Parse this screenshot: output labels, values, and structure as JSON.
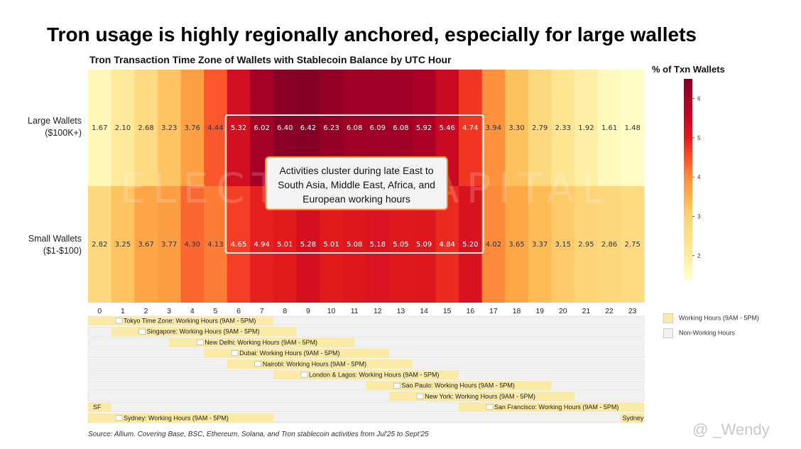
{
  "title": "Tron usage is highly regionally anchored, especially for large wallets",
  "chart_data": {
    "type": "heatmap",
    "title": "Tron Transaction Time Zone of Wallets with Stablecoin Balance by UTC Hour",
    "x": [
      0,
      1,
      2,
      3,
      4,
      5,
      6,
      7,
      8,
      9,
      10,
      11,
      12,
      13,
      14,
      15,
      16,
      17,
      18,
      19,
      20,
      21,
      22,
      23
    ],
    "rows": [
      {
        "label_line1": "Large Wallets",
        "label_line2": "($100K+)",
        "values": [
          1.67,
          2.1,
          2.68,
          3.23,
          3.76,
          4.44,
          5.32,
          6.02,
          6.4,
          6.42,
          6.23,
          6.08,
          6.09,
          6.08,
          5.92,
          5.46,
          4.74,
          3.94,
          3.3,
          2.79,
          2.33,
          1.92,
          1.61,
          1.48
        ]
      },
      {
        "label_line1": "Small Wallets",
        "label_line2": "($1-$100)",
        "values": [
          2.82,
          3.25,
          3.67,
          3.77,
          4.3,
          4.13,
          4.65,
          4.94,
          5.01,
          5.28,
          5.01,
          5.08,
          5.18,
          5.05,
          5.09,
          4.84,
          5.2,
          4.02,
          3.65,
          3.37,
          3.15,
          2.95,
          2.86,
          2.75
        ]
      }
    ],
    "colorbar": {
      "title": "% of Txn Wallets",
      "min": 1.4,
      "max": 6.5,
      "ticks": [
        2,
        3,
        4,
        5,
        6
      ]
    },
    "highlight_hours": [
      6,
      16
    ],
    "annotation": "Activities cluster during late East to South Asia, Middle East, Africa, and European working hours"
  },
  "timezones": [
    {
      "label": "Tokyo Time Zone: Working Hours (9AM - 5PM)",
      "flag": "japan-flag",
      "segments": [
        [
          0,
          8
        ]
      ]
    },
    {
      "label": "Singapore: Working Hours (9AM - 5PM)",
      "flag": "singapore-flag",
      "segments": [
        [
          1,
          9
        ]
      ]
    },
    {
      "label": "New Delhi: Working Hours (9AM - 5PM)",
      "flag": "india-flag",
      "segments": [
        [
          3.5,
          11.5
        ]
      ]
    },
    {
      "label": "Dubai: Working Hours (9AM - 5PM)",
      "flag": "uae-flag",
      "segments": [
        [
          5,
          13
        ]
      ]
    },
    {
      "label": "Nairobi: Working Hours (9AM - 5PM)",
      "flag": "kenya-flag",
      "segments": [
        [
          6,
          14
        ]
      ]
    },
    {
      "label": "London & Lagos: Working Hours (9AM - 5PM)",
      "flag": "uk-nigeria-flag",
      "segments": [
        [
          8,
          16
        ]
      ]
    },
    {
      "label": "Sao Paulo: Working Hours (9AM - 5PM)",
      "flag": "brazil-flag",
      "segments": [
        [
          12,
          20
        ]
      ]
    },
    {
      "label": "New York: Working Hours (9AM - 5PM)",
      "flag": "usa-flag",
      "segments": [
        [
          13,
          21
        ]
      ]
    },
    {
      "label": "San Francisco: Working Hours (9AM - 5PM)",
      "flag": "usa-flag",
      "segments": [
        [
          16,
          24
        ],
        [
          0,
          1
        ]
      ],
      "extra_label": "SF"
    },
    {
      "label": "Sydney: Working Hours (9AM - 5PM)",
      "flag": "australia-flag",
      "segments": [
        [
          0,
          8
        ],
        [
          23,
          24
        ]
      ],
      "extra_label": "Sydney"
    }
  ],
  "legend": [
    {
      "label": "Working Hours (9AM - 5PM)",
      "color": "#fbe9a6"
    },
    {
      "label": "Non-Working Hours",
      "color": "#f1f1f1"
    }
  ],
  "source": "Source: Allium. Covering Base, BSC, Ethereum, Solana, and Tron stablecoin activities from Jul'25 to Sept'25",
  "watermark": "@ _Wendy",
  "background_watermark": "ELECTRIC CAPITAL"
}
